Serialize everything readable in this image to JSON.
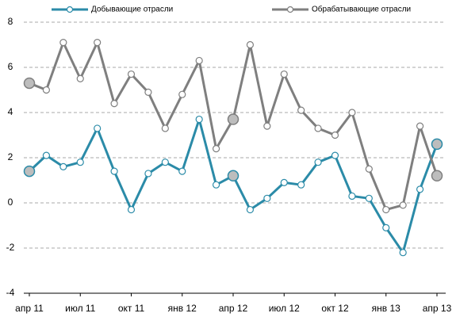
{
  "chart_data": {
    "type": "line",
    "categories": [
      "апр 11",
      null,
      null,
      "июл 11",
      null,
      null,
      "окт 11",
      null,
      null,
      "янв 12",
      null,
      null,
      "апр 12",
      null,
      null,
      "июл 12",
      null,
      null,
      "окт 12",
      null,
      null,
      "янв 13",
      null,
      null,
      "апр 13"
    ],
    "series": [
      {
        "name": "Добывающие отрасли",
        "color": "#2b8ba8",
        "values": [
          1.4,
          2.1,
          1.6,
          1.8,
          3.3,
          1.4,
          -0.3,
          1.3,
          1.8,
          1.4,
          3.7,
          0.8,
          1.2,
          -0.3,
          0.2,
          0.9,
          0.8,
          1.8,
          2.1,
          0.3,
          0.2,
          -1.1,
          -2.2,
          0.6,
          2.6
        ]
      },
      {
        "name": "Обрабатывающие отрасли",
        "color": "#7f7f7f",
        "values": [
          5.3,
          5.0,
          7.1,
          5.5,
          7.1,
          4.4,
          5.7,
          4.9,
          3.3,
          4.8,
          6.3,
          2.4,
          3.7,
          7.0,
          3.4,
          5.7,
          4.1,
          3.3,
          3.0,
          4.0,
          1.5,
          -0.3,
          -0.1,
          3.4,
          1.2
        ]
      }
    ],
    "highlighted_points": [
      0,
      12,
      24
    ],
    "ylim": [
      -4,
      8
    ],
    "yticks": [
      -4,
      -2,
      0,
      2,
      4,
      6,
      8
    ],
    "grid": true,
    "legend": "top"
  }
}
